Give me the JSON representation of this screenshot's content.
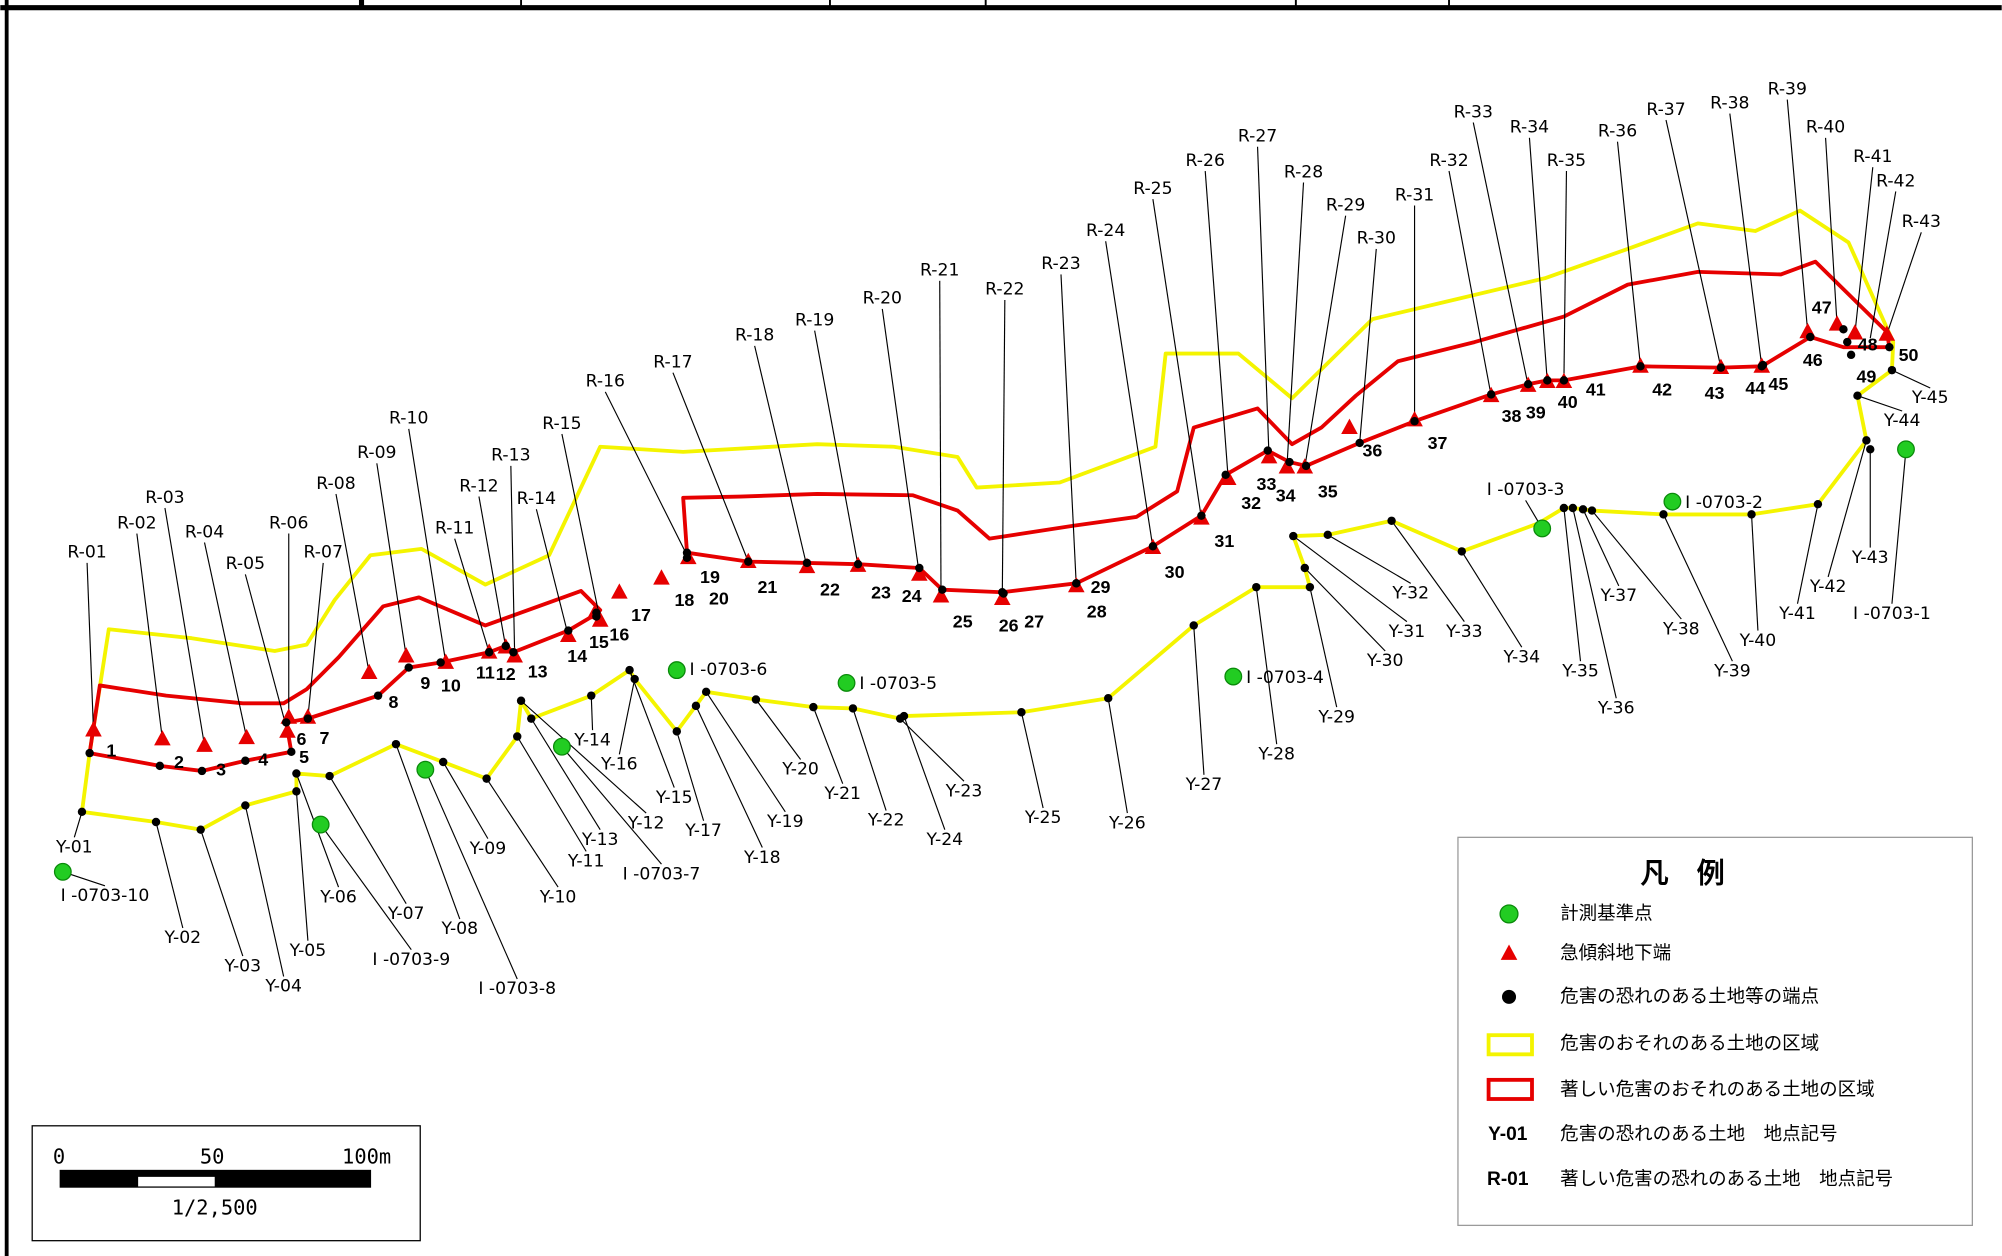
{
  "colors": {
    "danger_zone": "#f4f400",
    "severe_zone": "#e60000",
    "benchmark": "#22cc22",
    "benchmark_edge": "#0a8a0a",
    "slope_toe": "#e60000",
    "endpoint": "#000000"
  },
  "map": {
    "r_labels": [
      "R-01",
      "R-02",
      "R-03",
      "R-04",
      "R-05",
      "R-06",
      "R-07",
      "R-08",
      "R-09",
      "R-10",
      "R-11",
      "R-12",
      "R-13",
      "R-14",
      "R-15",
      "R-16",
      "R-17",
      "R-18",
      "R-19",
      "R-20",
      "R-21",
      "R-22",
      "R-23",
      "R-24",
      "R-25",
      "R-26",
      "R-27",
      "R-28",
      "R-29",
      "R-30",
      "R-31",
      "R-32",
      "R-33",
      "R-34",
      "R-35",
      "R-36",
      "R-37",
      "R-38",
      "R-39",
      "R-40",
      "R-41",
      "R-42",
      "R-43"
    ],
    "y_labels": [
      "Y-01",
      "Y-02",
      "Y-03",
      "Y-04",
      "Y-05",
      "Y-06",
      "Y-07",
      "Y-08",
      "Y-09",
      "Y-10",
      "Y-11",
      "Y-12",
      "Y-13",
      "Y-14",
      "Y-15",
      "Y-16",
      "Y-17",
      "Y-18",
      "Y-19",
      "Y-20",
      "Y-21",
      "Y-22",
      "Y-23",
      "Y-24",
      "Y-25",
      "Y-26",
      "Y-27",
      "Y-28",
      "Y-29",
      "Y-30",
      "Y-31",
      "Y-32",
      "Y-33",
      "Y-34",
      "Y-35",
      "Y-36",
      "Y-37",
      "Y-38",
      "Y-39",
      "Y-40",
      "Y-41",
      "Y-42",
      "Y-43",
      "Y-44",
      "Y-45"
    ],
    "point_numbers": [
      "1",
      "2",
      "3",
      "4",
      "5",
      "6",
      "7",
      "8",
      "9",
      "10",
      "11",
      "12",
      "13",
      "14",
      "15",
      "16",
      "17",
      "18",
      "19",
      "20",
      "21",
      "22",
      "23",
      "24",
      "25",
      "26",
      "27",
      "28",
      "29",
      "30",
      "31",
      "32",
      "33",
      "34",
      "35",
      "36",
      "37",
      "38",
      "39",
      "40",
      "41",
      "42",
      "43",
      "44",
      "45",
      "46",
      "47",
      "48",
      "49",
      "50"
    ],
    "benchmark_labels": [
      "I -0703-1",
      "I -0703-2",
      "I -0703-3",
      "I -0703-4",
      "I -0703-5",
      "I -0703-6",
      "I -0703-7",
      "I -0703-8",
      "I -0703-9",
      "I -0703-10"
    ]
  },
  "legend": {
    "title": "凡　例",
    "items": [
      {
        "icon": "benchmark-icon",
        "label": "計測基準点"
      },
      {
        "icon": "slope-toe-triangle-icon",
        "label": "急傾斜地下端"
      },
      {
        "icon": "endpoint-dot-icon",
        "label": "危害の恐れのある土地等の端点"
      },
      {
        "icon": "yellow-outline-icon",
        "label": "危害のおそれのある土地の区域"
      },
      {
        "icon": "red-outline-icon",
        "label": "著しい危害のおそれのある土地の区域"
      }
    ],
    "codes": [
      {
        "code": "Y-01",
        "label": "危害の恐れのある土地　地点記号"
      },
      {
        "code": "R-01",
        "label": "著しい危害の恐れのある土地　地点記号"
      }
    ]
  },
  "scale": {
    "tick_start": "0",
    "tick_mid": "50",
    "tick_end": "100m",
    "ratio": "1/2,500"
  }
}
